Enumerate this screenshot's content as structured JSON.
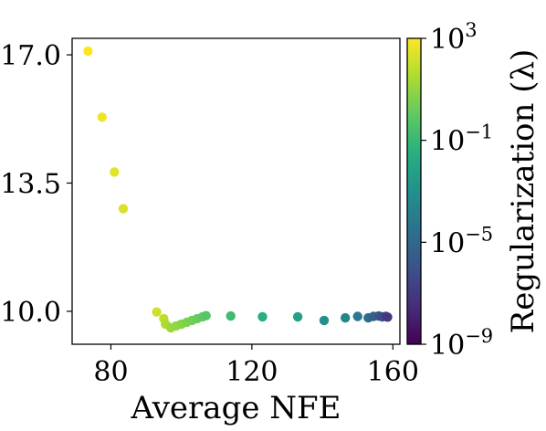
{
  "chart_data": {
    "type": "scatter",
    "xlabel": "Average NFE",
    "ylabel": "",
    "colorbar_label": "Regularization (λ)",
    "xlim": [
      69,
      162
    ],
    "ylim": [
      9.1,
      17.45
    ],
    "x_ticks": [
      80,
      120,
      160
    ],
    "y_ticks": [
      10.0,
      13.5,
      17.0
    ],
    "y_tick_labels": [
      "10.0",
      "13.5",
      "17.0"
    ],
    "colorbar": {
      "scale": "log",
      "range": [
        1e-09,
        1000.0
      ],
      "ticks": [
        {
          "base": "10",
          "exp": "3",
          "value": 1000.0
        },
        {
          "base": "10",
          "exp": "−1",
          "value": 0.1
        },
        {
          "base": "10",
          "exp": "−5",
          "value": 1e-05
        },
        {
          "base": "10",
          "exp": "−9",
          "value": 1e-09
        }
      ],
      "colormap": "viridis"
    },
    "grid": false,
    "points": [
      {
        "x": 73.5,
        "y": 17.1,
        "lambda_log10": 3.0
      },
      {
        "x": 77.5,
        "y": 15.3,
        "lambda_log10": 2.7
      },
      {
        "x": 81.0,
        "y": 13.8,
        "lambda_log10": 2.5
      },
      {
        "x": 83.5,
        "y": 12.8,
        "lambda_log10": 2.3
      },
      {
        "x": 93.0,
        "y": 9.98,
        "lambda_log10": 2.1
      },
      {
        "x": 95.0,
        "y": 9.8,
        "lambda_log10": 1.8
      },
      {
        "x": 95.5,
        "y": 9.65,
        "lambda_log10": 1.5
      },
      {
        "x": 97.0,
        "y": 9.55,
        "lambda_log10": 1.2
      },
      {
        "x": 98.5,
        "y": 9.6,
        "lambda_log10": 1.0
      },
      {
        "x": 100.0,
        "y": 9.65,
        "lambda_log10": 0.8
      },
      {
        "x": 101.5,
        "y": 9.7,
        "lambda_log10": 0.6
      },
      {
        "x": 103.0,
        "y": 9.75,
        "lambda_log10": 0.4
      },
      {
        "x": 104.5,
        "y": 9.8,
        "lambda_log10": 0.2
      },
      {
        "x": 106.0,
        "y": 9.85,
        "lambda_log10": 0.0
      },
      {
        "x": 107.0,
        "y": 9.88,
        "lambda_log10": -0.2
      },
      {
        "x": 114.0,
        "y": 9.87,
        "lambda_log10": -0.8
      },
      {
        "x": 123.0,
        "y": 9.85,
        "lambda_log10": -1.5
      },
      {
        "x": 133.0,
        "y": 9.85,
        "lambda_log10": -2.2
      },
      {
        "x": 140.5,
        "y": 9.75,
        "lambda_log10": -3.0
      },
      {
        "x": 146.5,
        "y": 9.82,
        "lambda_log10": -3.6
      },
      {
        "x": 150.0,
        "y": 9.86,
        "lambda_log10": -4.2
      },
      {
        "x": 153.0,
        "y": 9.82,
        "lambda_log10": -4.8
      },
      {
        "x": 154.5,
        "y": 9.86,
        "lambda_log10": -5.3
      },
      {
        "x": 156.0,
        "y": 9.87,
        "lambda_log10": -5.8
      },
      {
        "x": 157.0,
        "y": 9.85,
        "lambda_log10": -6.2
      },
      {
        "x": 158.0,
        "y": 9.86,
        "lambda_log10": -6.6
      },
      {
        "x": 158.5,
        "y": 9.84,
        "lambda_log10": -7.0
      }
    ]
  }
}
